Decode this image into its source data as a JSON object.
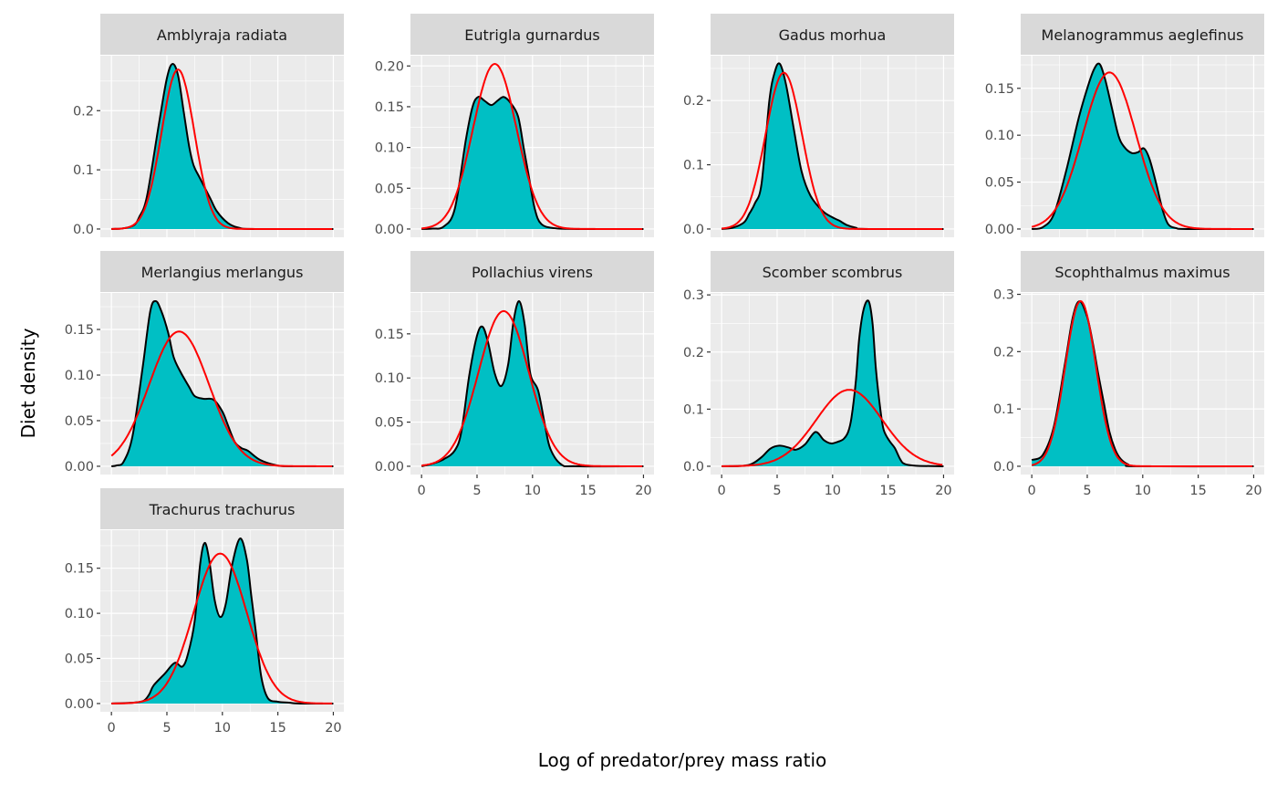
{
  "chart_data": {
    "type": "area",
    "layout": "facet-wrap 4 columns, free y scales",
    "xlabel": "Log of predator/prey mass ratio",
    "ylabel": "Diet density",
    "xlim": [
      -1,
      20.95
    ],
    "x_ticks": [
      "0",
      "5",
      "10",
      "15",
      "20"
    ],
    "grid": true,
    "colors": {
      "fill": "#00bfc4",
      "density_line": "#000000",
      "normal_fit": "#ff0000",
      "panel": "#ebebeb",
      "strip": "#d9d9d9"
    },
    "panels": [
      {
        "title": "Amblyraja radiata",
        "y_ticks": [
          "0.0",
          "0.1",
          "0.2"
        ],
        "y_tick_values": [
          0,
          0.1,
          0.2
        ],
        "density": [
          [
            0,
            0
          ],
          [
            1,
            0.001
          ],
          [
            2,
            0.006
          ],
          [
            2.5,
            0.02
          ],
          [
            3.2,
            0.055
          ],
          [
            4.3,
            0.18
          ],
          [
            5,
            0.255
          ],
          [
            5.5,
            0.279
          ],
          [
            6,
            0.26
          ],
          [
            6.5,
            0.2
          ],
          [
            7,
            0.14
          ],
          [
            7.4,
            0.108
          ],
          [
            8,
            0.085
          ],
          [
            8.9,
            0.052
          ],
          [
            9.5,
            0.03
          ],
          [
            10.5,
            0.01
          ],
          [
            11.5,
            0.002
          ],
          [
            13,
            0
          ],
          [
            20,
            0
          ]
        ],
        "normal_fit": {
          "mean": 6.0,
          "sd": 1.48
        }
      },
      {
        "title": "Eutrigla gurnardus",
        "y_ticks": [
          "0.00",
          "0.05",
          "0.10",
          "0.15",
          "0.20"
        ],
        "y_tick_values": [
          0,
          0.05,
          0.1,
          0.15,
          0.2
        ],
        "density": [
          [
            0,
            0
          ],
          [
            1,
            0.0005
          ],
          [
            2,
            0.003
          ],
          [
            3,
            0.025
          ],
          [
            4,
            0.11
          ],
          [
            4.6,
            0.15
          ],
          [
            5.1,
            0.162
          ],
          [
            5.7,
            0.157
          ],
          [
            6.3,
            0.152
          ],
          [
            6.9,
            0.158
          ],
          [
            7.4,
            0.162
          ],
          [
            8,
            0.155
          ],
          [
            8.7,
            0.138
          ],
          [
            9.2,
            0.1
          ],
          [
            9.6,
            0.07
          ],
          [
            10.2,
            0.025
          ],
          [
            10.8,
            0.006
          ],
          [
            12,
            0.001
          ],
          [
            14,
            0
          ],
          [
            20,
            0
          ]
        ],
        "normal_fit": {
          "mean": 6.6,
          "sd": 1.97
        }
      },
      {
        "title": "Gadus morhua",
        "y_ticks": [
          "0.0",
          "0.1",
          "0.2"
        ],
        "y_tick_values": [
          0,
          0.1,
          0.2
        ],
        "density": [
          [
            0,
            0
          ],
          [
            1,
            0.002
          ],
          [
            2,
            0.01
          ],
          [
            2.5,
            0.024
          ],
          [
            3,
            0.04
          ],
          [
            3.6,
            0.071
          ],
          [
            4.3,
            0.2
          ],
          [
            4.8,
            0.245
          ],
          [
            5.25,
            0.257
          ],
          [
            5.8,
            0.225
          ],
          [
            6.5,
            0.156
          ],
          [
            7.2,
            0.09
          ],
          [
            8,
            0.052
          ],
          [
            9.1,
            0.028
          ],
          [
            10,
            0.018
          ],
          [
            10.6,
            0.013
          ],
          [
            11.3,
            0.006
          ],
          [
            12.1,
            0.002
          ],
          [
            13,
            0
          ],
          [
            20,
            0
          ]
        ],
        "normal_fit": {
          "mean": 5.6,
          "sd": 1.64
        }
      },
      {
        "title": "Melanogrammus aeglefinus",
        "y_ticks": [
          "0.00",
          "0.05",
          "0.10",
          "0.15"
        ],
        "y_tick_values": [
          0,
          0.05,
          0.1,
          0.15
        ],
        "density": [
          [
            0,
            0
          ],
          [
            1,
            0.002
          ],
          [
            2,
            0.016
          ],
          [
            3.1,
            0.062
          ],
          [
            4.2,
            0.117
          ],
          [
            5,
            0.15
          ],
          [
            5.6,
            0.17
          ],
          [
            6.1,
            0.176
          ],
          [
            6.6,
            0.16
          ],
          [
            7.2,
            0.13
          ],
          [
            7.8,
            0.1
          ],
          [
            8.3,
            0.088
          ],
          [
            9,
            0.081
          ],
          [
            9.6,
            0.082
          ],
          [
            10.1,
            0.086
          ],
          [
            10.6,
            0.075
          ],
          [
            11.2,
            0.049
          ],
          [
            11.8,
            0.02
          ],
          [
            12.3,
            0.005
          ],
          [
            13,
            0.001
          ],
          [
            14,
            0
          ],
          [
            20,
            0
          ]
        ],
        "normal_fit": {
          "mean": 7.0,
          "sd": 2.39
        }
      },
      {
        "title": "Merlangius merlangus",
        "y_ticks": [
          "0.00",
          "0.05",
          "0.10",
          "0.15"
        ],
        "y_tick_values": [
          0,
          0.05,
          0.1,
          0.15
        ],
        "density": [
          [
            0,
            0
          ],
          [
            0.5,
            0.001
          ],
          [
            1.1,
            0.005
          ],
          [
            1.9,
            0.033
          ],
          [
            2.8,
            0.107
          ],
          [
            3.5,
            0.17
          ],
          [
            4,
            0.181
          ],
          [
            4.5,
            0.17
          ],
          [
            5.1,
            0.147
          ],
          [
            5.6,
            0.12
          ],
          [
            6.2,
            0.104
          ],
          [
            7,
            0.087
          ],
          [
            7.5,
            0.077
          ],
          [
            8.3,
            0.074
          ],
          [
            9.2,
            0.073
          ],
          [
            10,
            0.06
          ],
          [
            10.5,
            0.045
          ],
          [
            11.1,
            0.027
          ],
          [
            11.7,
            0.02
          ],
          [
            12.3,
            0.017
          ],
          [
            13.4,
            0.007
          ],
          [
            14.9,
            0.001
          ],
          [
            16,
            0
          ],
          [
            20,
            0
          ]
        ],
        "normal_fit": {
          "mean": 6.1,
          "sd": 2.7
        }
      },
      {
        "title": "Pollachius virens",
        "y_ticks": [
          "0.00",
          "0.05",
          "0.10",
          "0.15"
        ],
        "y_tick_values": [
          0,
          0.05,
          0.1,
          0.15
        ],
        "density": [
          [
            0,
            0
          ],
          [
            1,
            0.003
          ],
          [
            2,
            0.008
          ],
          [
            3,
            0.018
          ],
          [
            3.6,
            0.04
          ],
          [
            4.3,
            0.103
          ],
          [
            5,
            0.148
          ],
          [
            5.5,
            0.158
          ],
          [
            6,
            0.14
          ],
          [
            6.6,
            0.105
          ],
          [
            7.2,
            0.091
          ],
          [
            7.8,
            0.115
          ],
          [
            8.3,
            0.165
          ],
          [
            8.8,
            0.187
          ],
          [
            9.3,
            0.16
          ],
          [
            9.8,
            0.105
          ],
          [
            10.5,
            0.086
          ],
          [
            11.1,
            0.048
          ],
          [
            11.6,
            0.02
          ],
          [
            12.6,
            0.002
          ],
          [
            14,
            0
          ],
          [
            20,
            0
          ]
        ],
        "normal_fit": {
          "mean": 7.4,
          "sd": 2.27
        }
      },
      {
        "title": "Scomber scombrus",
        "y_ticks": [
          "0.0",
          "0.1",
          "0.2",
          "0.3"
        ],
        "y_tick_values": [
          0,
          0.1,
          0.2,
          0.3
        ],
        "density": [
          [
            0,
            0
          ],
          [
            2,
            0.001
          ],
          [
            2.8,
            0.005
          ],
          [
            3.6,
            0.016
          ],
          [
            4.4,
            0.031
          ],
          [
            5.2,
            0.036
          ],
          [
            6,
            0.033
          ],
          [
            6.7,
            0.029
          ],
          [
            7.5,
            0.038
          ],
          [
            8.45,
            0.06
          ],
          [
            9.2,
            0.046
          ],
          [
            9.85,
            0.04
          ],
          [
            10.5,
            0.043
          ],
          [
            11,
            0.048
          ],
          [
            11.4,
            0.06
          ],
          [
            11.7,
            0.085
          ],
          [
            12.1,
            0.15
          ],
          [
            12.4,
            0.224
          ],
          [
            12.8,
            0.275
          ],
          [
            13.25,
            0.289
          ],
          [
            13.6,
            0.25
          ],
          [
            13.9,
            0.171
          ],
          [
            14.3,
            0.1
          ],
          [
            14.6,
            0.064
          ],
          [
            15.1,
            0.045
          ],
          [
            15.6,
            0.032
          ],
          [
            16.1,
            0.012
          ],
          [
            16.5,
            0.004
          ],
          [
            17.5,
            0.001
          ],
          [
            20,
            0
          ]
        ],
        "normal_fit": {
          "mean": 11.5,
          "sd": 2.98
        }
      },
      {
        "title": "Scophthalmus maximus",
        "y_ticks": [
          "0.0",
          "0.1",
          "0.2",
          "0.3"
        ],
        "y_tick_values": [
          0,
          0.1,
          0.2,
          0.3
        ],
        "density": [
          [
            0,
            0.011
          ],
          [
            1,
            0.02
          ],
          [
            2,
            0.07
          ],
          [
            3,
            0.18
          ],
          [
            3.7,
            0.26
          ],
          [
            4.3,
            0.288
          ],
          [
            5,
            0.26
          ],
          [
            5.5,
            0.215
          ],
          [
            6,
            0.16
          ],
          [
            6.5,
            0.11
          ],
          [
            7,
            0.06
          ],
          [
            7.5,
            0.03
          ],
          [
            8,
            0.013
          ],
          [
            8.7,
            0.003
          ],
          [
            9.5,
            0
          ],
          [
            20,
            0
          ]
        ],
        "normal_fit": {
          "mean": 4.4,
          "sd": 1.385
        }
      },
      {
        "title": "Trachurus trachurus",
        "y_ticks": [
          "0.00",
          "0.05",
          "0.10",
          "0.15"
        ],
        "y_tick_values": [
          0,
          0.05,
          0.1,
          0.15
        ],
        "density": [
          [
            0,
            0
          ],
          [
            2,
            0.001
          ],
          [
            2.9,
            0.003
          ],
          [
            3.4,
            0.01
          ],
          [
            3.8,
            0.02
          ],
          [
            4.8,
            0.033
          ],
          [
            5.7,
            0.045
          ],
          [
            6.4,
            0.041
          ],
          [
            6.9,
            0.055
          ],
          [
            7.5,
            0.091
          ],
          [
            8,
            0.155
          ],
          [
            8.4,
            0.178
          ],
          [
            8.8,
            0.16
          ],
          [
            9.3,
            0.115
          ],
          [
            9.8,
            0.096
          ],
          [
            10.3,
            0.11
          ],
          [
            10.9,
            0.155
          ],
          [
            11.6,
            0.183
          ],
          [
            12.2,
            0.16
          ],
          [
            12.6,
            0.12
          ],
          [
            13,
            0.081
          ],
          [
            13.5,
            0.03
          ],
          [
            14.1,
            0.006
          ],
          [
            15,
            0.002
          ],
          [
            16,
            0.001
          ],
          [
            17,
            0
          ],
          [
            20,
            0
          ]
        ],
        "normal_fit": {
          "mean": 9.8,
          "sd": 2.4
        }
      }
    ]
  }
}
